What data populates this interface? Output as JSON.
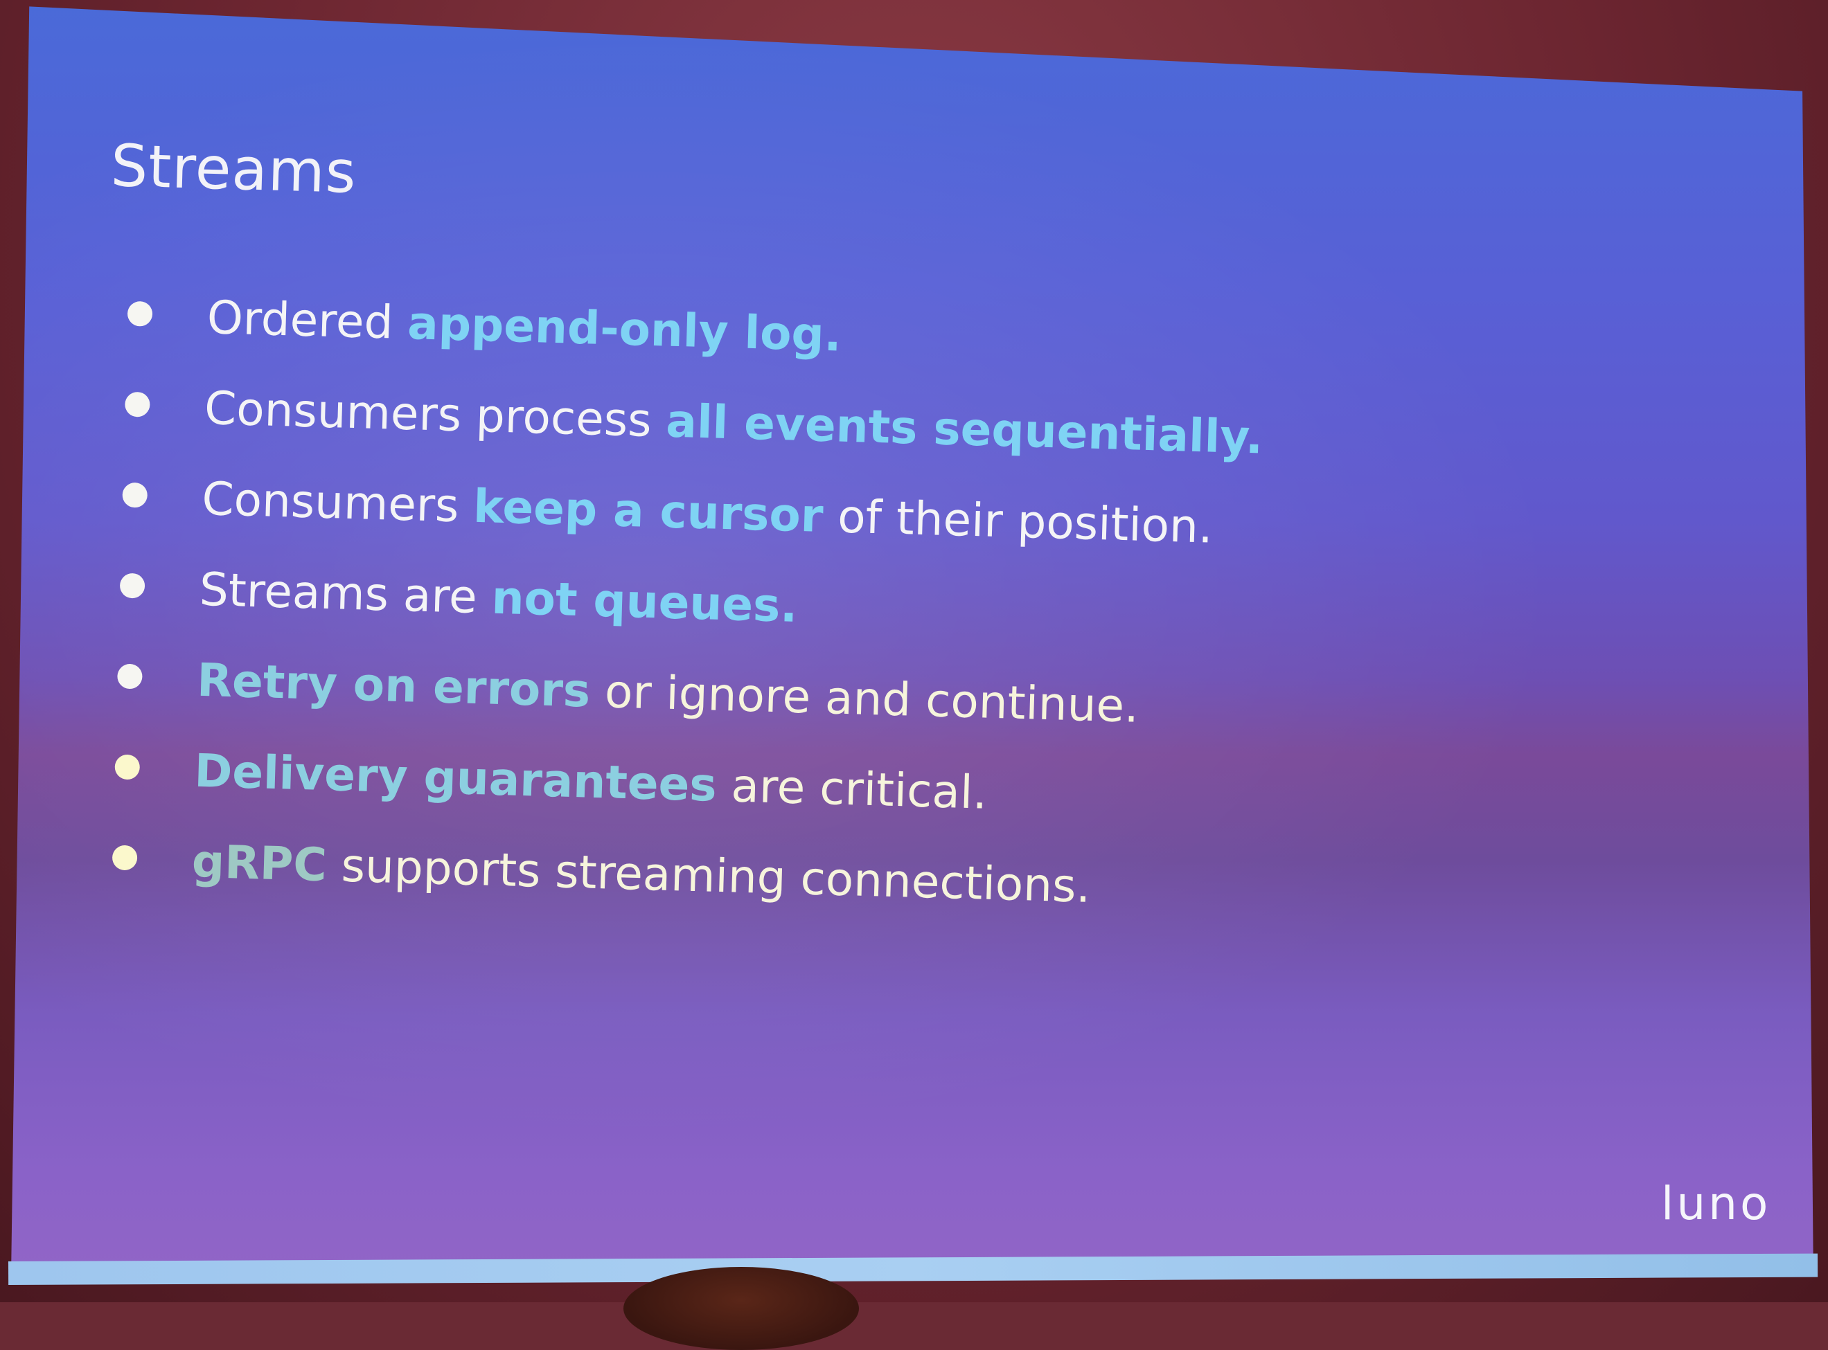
{
  "slide": {
    "title": "Streams",
    "bullets": [
      {
        "segments": [
          {
            "text": "Ordered ",
            "highlight": false
          },
          {
            "text": "append-only log.",
            "highlight": true
          }
        ]
      },
      {
        "segments": [
          {
            "text": "Consumers process ",
            "highlight": false
          },
          {
            "text": "all events sequentially.",
            "highlight": true
          }
        ]
      },
      {
        "segments": [
          {
            "text": "Consumers ",
            "highlight": false
          },
          {
            "text": "keep a cursor",
            "highlight": true
          },
          {
            "text": " of their position.",
            "highlight": false
          }
        ]
      },
      {
        "segments": [
          {
            "text": "Streams are ",
            "highlight": false
          },
          {
            "text": "not queues.",
            "highlight": true
          }
        ]
      },
      {
        "segments": [
          {
            "text": "Retry on errors",
            "highlight": true
          },
          {
            "text": " or ignore and continue.",
            "highlight": false
          }
        ]
      },
      {
        "segments": [
          {
            "text": "Delivery guarantees",
            "highlight": true
          },
          {
            "text": " are critical.",
            "highlight": false
          }
        ]
      },
      {
        "segments": [
          {
            "text": "gRPC",
            "highlight": true
          },
          {
            "text": " supports streaming connections.",
            "highlight": false
          }
        ]
      }
    ],
    "logo": "LUNO"
  },
  "colors": {
    "highlight": "#7fd3f4",
    "text": "#f4f4f6",
    "screen_top": "#4a6ad8",
    "screen_bottom": "#9366c6"
  }
}
